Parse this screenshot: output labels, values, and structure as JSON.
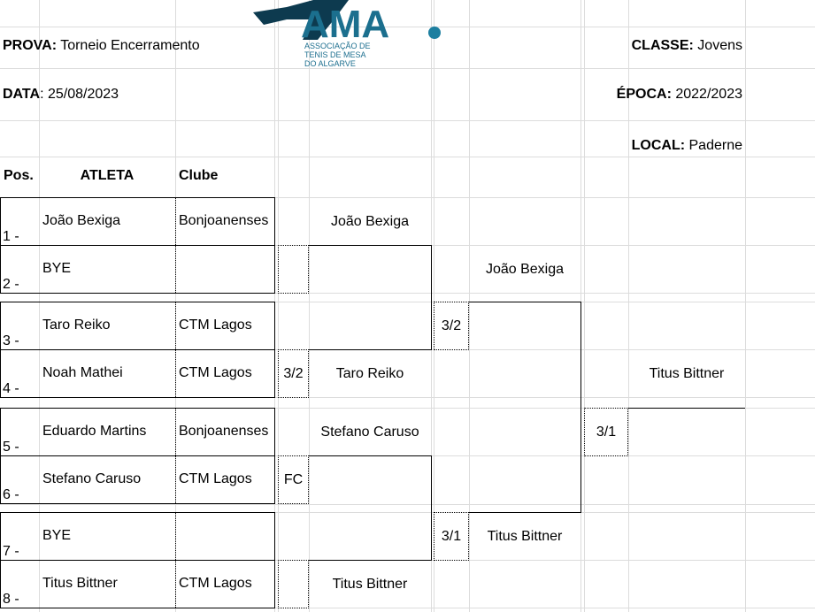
{
  "header": {
    "prova_label": "PROVA:",
    "prova_value": "Torneio Encerramento",
    "data_label": "DATA",
    "data_value": ": 25/08/2023",
    "classe_label": "CLASSE:",
    "classe_value": "Jovens",
    "epoca_label": "ÉPOCA:",
    "epoca_value": "2022/2023",
    "local_label": "LOCAL:",
    "local_value": "Paderne"
  },
  "logo": {
    "name": "ATMA.",
    "line1": "ASSOCIAÇÃO DE",
    "line2": "TENIS DE MESA",
    "line3": "DO ALGARVE",
    "colors": {
      "dark": "#0d3a4f",
      "accent": "#1d7fa0"
    }
  },
  "columns": {
    "pos": "Pos.",
    "atleta": "ATLETA",
    "clube": "Clube"
  },
  "players": [
    {
      "pos": "1 -",
      "name": "João Bexiga",
      "club": "Bonjoanenses"
    },
    {
      "pos": "2 -",
      "name": "BYE",
      "club": ""
    },
    {
      "pos": "3 -",
      "name": "Taro Reiko",
      "club": "CTM Lagos"
    },
    {
      "pos": "4 -",
      "name": "Noah Mathei",
      "club": "CTM Lagos"
    },
    {
      "pos": "5 -",
      "name": "Eduardo Martins",
      "club": "Bonjoanenses"
    },
    {
      "pos": "6 -",
      "name": "Stefano Caruso",
      "club": "CTM Lagos"
    },
    {
      "pos": "7 -",
      "name": "BYE",
      "club": ""
    },
    {
      "pos": "8 -",
      "name": "Titus Bittner",
      "club": "CTM Lagos"
    }
  ],
  "round2": {
    "winners": [
      "João Bexiga",
      "Taro Reiko",
      "Stefano Caruso",
      "Titus Bittner"
    ],
    "scores": [
      "",
      "3/2",
      "FC",
      ""
    ]
  },
  "semis": {
    "winners": [
      "João Bexiga",
      "Titus Bittner"
    ],
    "scores": [
      "3/2",
      "3/1"
    ]
  },
  "final": {
    "winner": "Titus Bittner",
    "score": "3/1"
  }
}
